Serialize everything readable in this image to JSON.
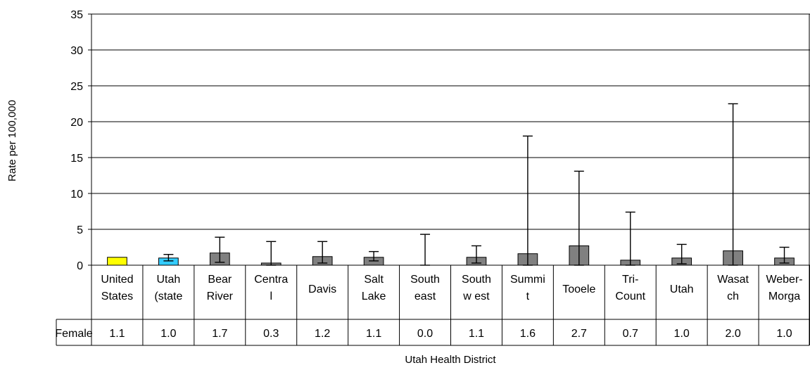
{
  "chart_data": {
    "type": "bar",
    "xlabel": "Utah Health District",
    "ylabel": "Rate per 100,000",
    "ylim": [
      0,
      35
    ],
    "yticks": [
      0,
      5,
      10,
      15,
      20,
      25,
      30,
      35
    ],
    "grid": true,
    "categories": [
      [
        "United",
        "States"
      ],
      [
        "Utah",
        "(state"
      ],
      [
        "Bear",
        "River"
      ],
      [
        "Centra",
        "l"
      ],
      [
        "Davis"
      ],
      [
        "Salt",
        "Lake"
      ],
      [
        "South",
        "east"
      ],
      [
        "South",
        "w est"
      ],
      [
        "Summi",
        "t"
      ],
      [
        "Tooele"
      ],
      [
        "Tri-",
        "Count"
      ],
      [
        "Utah"
      ],
      [
        "Wasat",
        "ch"
      ],
      [
        "Weber-",
        "Morga"
      ]
    ],
    "series": [
      {
        "name": "Female",
        "values": [
          1.1,
          1.0,
          1.7,
          0.3,
          1.2,
          1.1,
          0.0,
          1.1,
          1.6,
          2.7,
          0.7,
          1.0,
          2.0,
          1.0
        ],
        "labels": [
          "1.1",
          "1.0",
          "1.7",
          "0.3",
          "1.2",
          "1.1",
          "0.0",
          "1.1",
          "1.6",
          "2.7",
          "0.7",
          "1.0",
          "2.0",
          "1.0"
        ],
        "error_low": [
          null,
          0.6,
          0.4,
          0.0,
          0.3,
          0.6,
          0.0,
          0.3,
          0.0,
          0.0,
          0.0,
          0.2,
          0.0,
          0.3
        ],
        "error_high": [
          null,
          1.5,
          3.9,
          3.3,
          3.3,
          1.9,
          4.3,
          2.7,
          18.0,
          13.1,
          7.4,
          2.9,
          22.5,
          2.5
        ],
        "colors": [
          "#ffff00",
          "#33ccff",
          "#808080",
          "#808080",
          "#808080",
          "#808080",
          "#808080",
          "#808080",
          "#808080",
          "#808080",
          "#808080",
          "#808080",
          "#808080",
          "#808080"
        ]
      }
    ]
  }
}
